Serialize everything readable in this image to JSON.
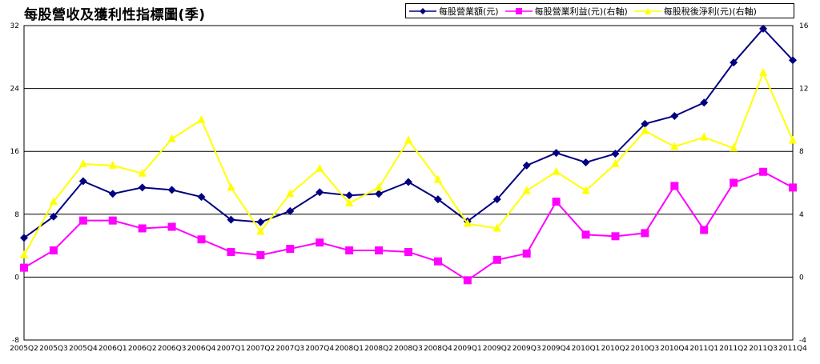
{
  "chart_data": {
    "type": "line",
    "title": "每股營收及獲利性指標圖(季)",
    "categories": [
      "2005Q2",
      "2005Q3",
      "2005Q4",
      "2006Q1",
      "2006Q2",
      "2006Q3",
      "2006Q4",
      "2007Q1",
      "2007Q2",
      "2007Q3",
      "2007Q4",
      "2008Q1",
      "2008Q2",
      "2008Q3",
      "2008Q4",
      "2009Q1",
      "2009Q2",
      "2009Q3",
      "2009Q4",
      "2010Q1",
      "2010Q2",
      "2010Q3",
      "2010Q4",
      "2011Q1",
      "2011Q2",
      "2011Q3",
      "2011Q4"
    ],
    "y_left": {
      "ylim": [
        -8,
        32
      ],
      "ticks": [
        -8,
        0,
        8,
        16,
        24,
        32
      ]
    },
    "y_right": {
      "ylim": [
        -4,
        16
      ],
      "ticks": [
        -4,
        0,
        4,
        8,
        12,
        16
      ]
    },
    "grid": "horizontal",
    "legend_position": "top-right",
    "series": [
      {
        "name": "每股營業額(元)",
        "axis": "left",
        "color": "#000080",
        "marker": "diamond",
        "values": [
          5.0,
          7.7,
          12.2,
          10.6,
          11.4,
          11.1,
          10.2,
          7.3,
          7.0,
          8.4,
          10.8,
          10.4,
          10.6,
          12.1,
          9.9,
          7.1,
          9.9,
          14.2,
          15.8,
          14.6,
          15.7,
          19.5,
          20.5,
          22.2,
          27.3,
          31.6,
          27.6
        ]
      },
      {
        "name": "每股營業利益(元)(右軸)",
        "axis": "right",
        "color": "#ff00ff",
        "marker": "square",
        "values": [
          0.6,
          1.7,
          3.6,
          3.6,
          3.1,
          3.2,
          2.4,
          1.6,
          1.4,
          1.8,
          2.2,
          1.7,
          1.7,
          1.6,
          1.0,
          -0.2,
          1.1,
          1.5,
          4.8,
          2.7,
          2.6,
          2.8,
          5.8,
          3.0,
          6.0,
          6.7,
          5.7
        ]
      },
      {
        "name": "每股稅後淨利(元)(右軸)",
        "axis": "right",
        "color": "#ffff00",
        "marker": "triangle",
        "values": [
          1.4,
          4.8,
          7.2,
          7.1,
          6.6,
          8.8,
          10.0,
          5.7,
          2.9,
          5.3,
          6.9,
          4.7,
          5.7,
          8.7,
          6.2,
          3.4,
          3.1,
          5.5,
          6.7,
          5.5,
          7.2,
          9.3,
          8.3,
          8.9,
          8.2,
          13.0,
          8.7
        ]
      }
    ]
  }
}
